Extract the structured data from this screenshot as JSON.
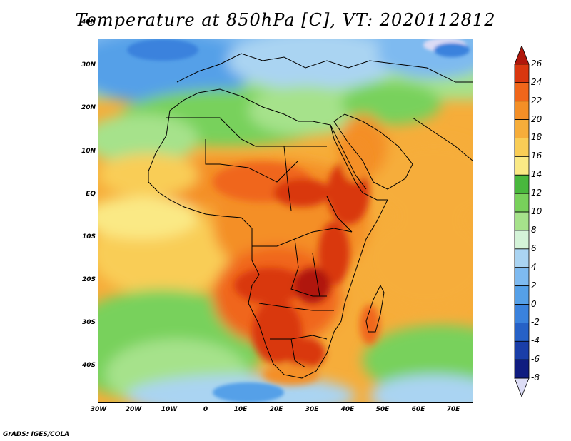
{
  "title": "Temperature at 850hPa [C], VT: 2020112812",
  "lat_labels": [
    "40N",
    "30N",
    "20N",
    "10N",
    "EQ",
    "10S",
    "20S",
    "30S",
    "40S"
  ],
  "lon_labels": [
    "30W",
    "20W",
    "10W",
    "0",
    "10E",
    "20E",
    "30E",
    "40E",
    "50E",
    "60E",
    "70E"
  ],
  "colorbar": {
    "labels": [
      "26",
      "24",
      "22",
      "20",
      "18",
      "16",
      "14",
      "12",
      "10",
      "8",
      "6",
      "4",
      "2",
      "0",
      "-2",
      "-4",
      "-6",
      "-8"
    ],
    "colors": [
      "#b0170c",
      "#d9370f",
      "#f0661a",
      "#f48f26",
      "#f6ad3a",
      "#f9cd56",
      "#fae985",
      "#49b83d",
      "#78d15b",
      "#a6e28b",
      "#d4f3d8",
      "#aad4f2",
      "#7ebaf0",
      "#55a0e8",
      "#3a82dd",
      "#2661c7",
      "#1a3ea8",
      "#101c80",
      "#dcdcf5"
    ]
  },
  "credit": "GrADS: IGES/COLA"
}
